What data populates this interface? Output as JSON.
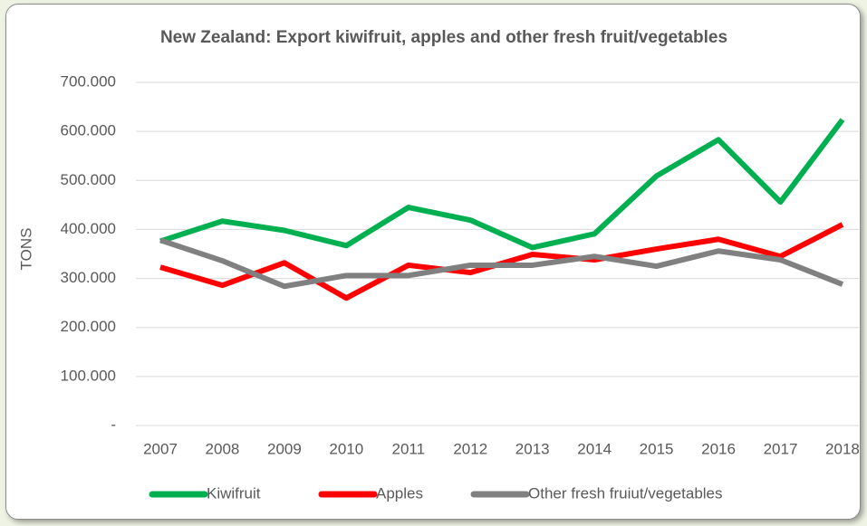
{
  "chart_data": {
    "type": "line",
    "title": "New Zealand: Export kiwifruit, apples and other fresh fruit/vegetables",
    "y_label": "TONS",
    "categories": [
      "2007",
      "2008",
      "2009",
      "2010",
      "2011",
      "2012",
      "2013",
      "2014",
      "2015",
      "2016",
      "2017",
      "2018"
    ],
    "series": [
      {
        "name": "Kiwifruit",
        "color": "#00b050",
        "values": [
          376000,
          417000,
          398000,
          367000,
          445000,
          419000,
          363000,
          391000,
          509000,
          583000,
          456000,
          624000
        ]
      },
      {
        "name": "Apples",
        "color": "#ff0000",
        "values": [
          323000,
          286000,
          332000,
          260000,
          327000,
          312000,
          349000,
          338000,
          360000,
          380000,
          345000,
          410000
        ]
      },
      {
        "name": "Other fresh fruiut/vegetables",
        "color": "#808080",
        "values": [
          378000,
          336000,
          284000,
          306000,
          306000,
          327000,
          327000,
          345000,
          325000,
          356000,
          338000,
          288000
        ]
      }
    ],
    "ylim": [
      0,
      700000
    ],
    "yticks": [
      {
        "value": 0,
        "label": "-"
      },
      {
        "value": 100000,
        "label": "100.000"
      },
      {
        "value": 200000,
        "label": "200.000"
      },
      {
        "value": 300000,
        "label": "300.000"
      },
      {
        "value": 400000,
        "label": "400.000"
      },
      {
        "value": 500000,
        "label": "500.000"
      },
      {
        "value": 600000,
        "label": "600.000"
      },
      {
        "value": 700000,
        "label": "700.000"
      }
    ],
    "grid": true,
    "legend": "bottom"
  }
}
